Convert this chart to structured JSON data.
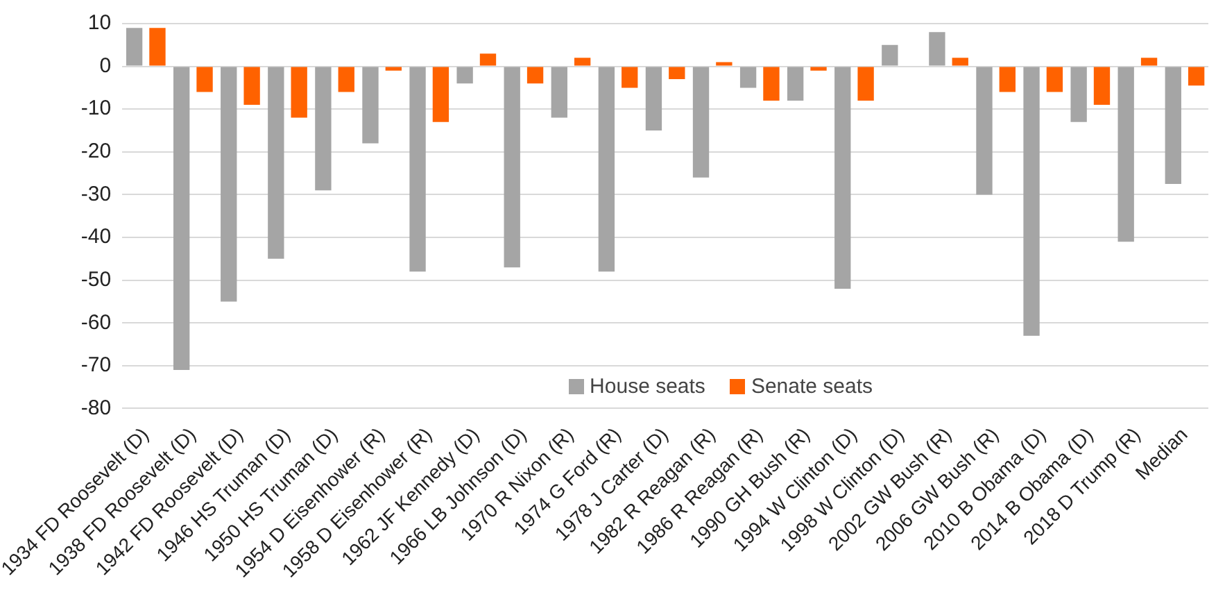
{
  "chart_data": {
    "type": "bar",
    "categories": [
      "1934 FD Roosevelt (D)",
      "1938 FD Roosevelt (D)",
      "1942 FD Roosevelt (D)",
      "1946 HS Truman (D)",
      "1950 HS Truman (D)",
      "1954 D Eisenhower (R)",
      "1958 D Eisenhower (R)",
      "1962 JF Kennedy (D)",
      "1966 LB Johnson (D)",
      "1970 R Nixon (R)",
      "1974 G Ford (R)",
      "1978 J Carter (D)",
      "1982 R Reagan (R)",
      "1986 R Reagan (R)",
      "1990 GH Bush (R)",
      "1994 W Clinton (D)",
      "1998 W Clinton (D)",
      "2002 GW Bush (R)",
      "2006 GW Bush (R)",
      "2010 B Obama (D)",
      "2014 B Obama (D)",
      "2018 D Trump (R)",
      "Median"
    ],
    "series": [
      {
        "name": "House seats",
        "color": "#a5a5a5",
        "values": [
          9,
          -71,
          -55,
          -45,
          -29,
          -18,
          -48,
          -4,
          -47,
          -12,
          -48,
          -15,
          -26,
          -5,
          -8,
          -52,
          5,
          8,
          -30,
          -63,
          -13,
          -41,
          -27.5
        ]
      },
      {
        "name": "Senate seats",
        "color": "#ff6200",
        "values": [
          9,
          -6,
          -9,
          -12,
          -6,
          -1,
          -13,
          3,
          -4,
          2,
          -5,
          -3,
          1,
          -8,
          -1,
          -8,
          0,
          2,
          -6,
          -6,
          -9,
          2,
          -4.5
        ]
      }
    ],
    "ylim": [
      -80,
      10
    ],
    "yticks": [
      -80,
      -70,
      -60,
      -50,
      -40,
      -30,
      -20,
      -10,
      0,
      10
    ],
    "grid": "y",
    "legend": "bottom"
  }
}
